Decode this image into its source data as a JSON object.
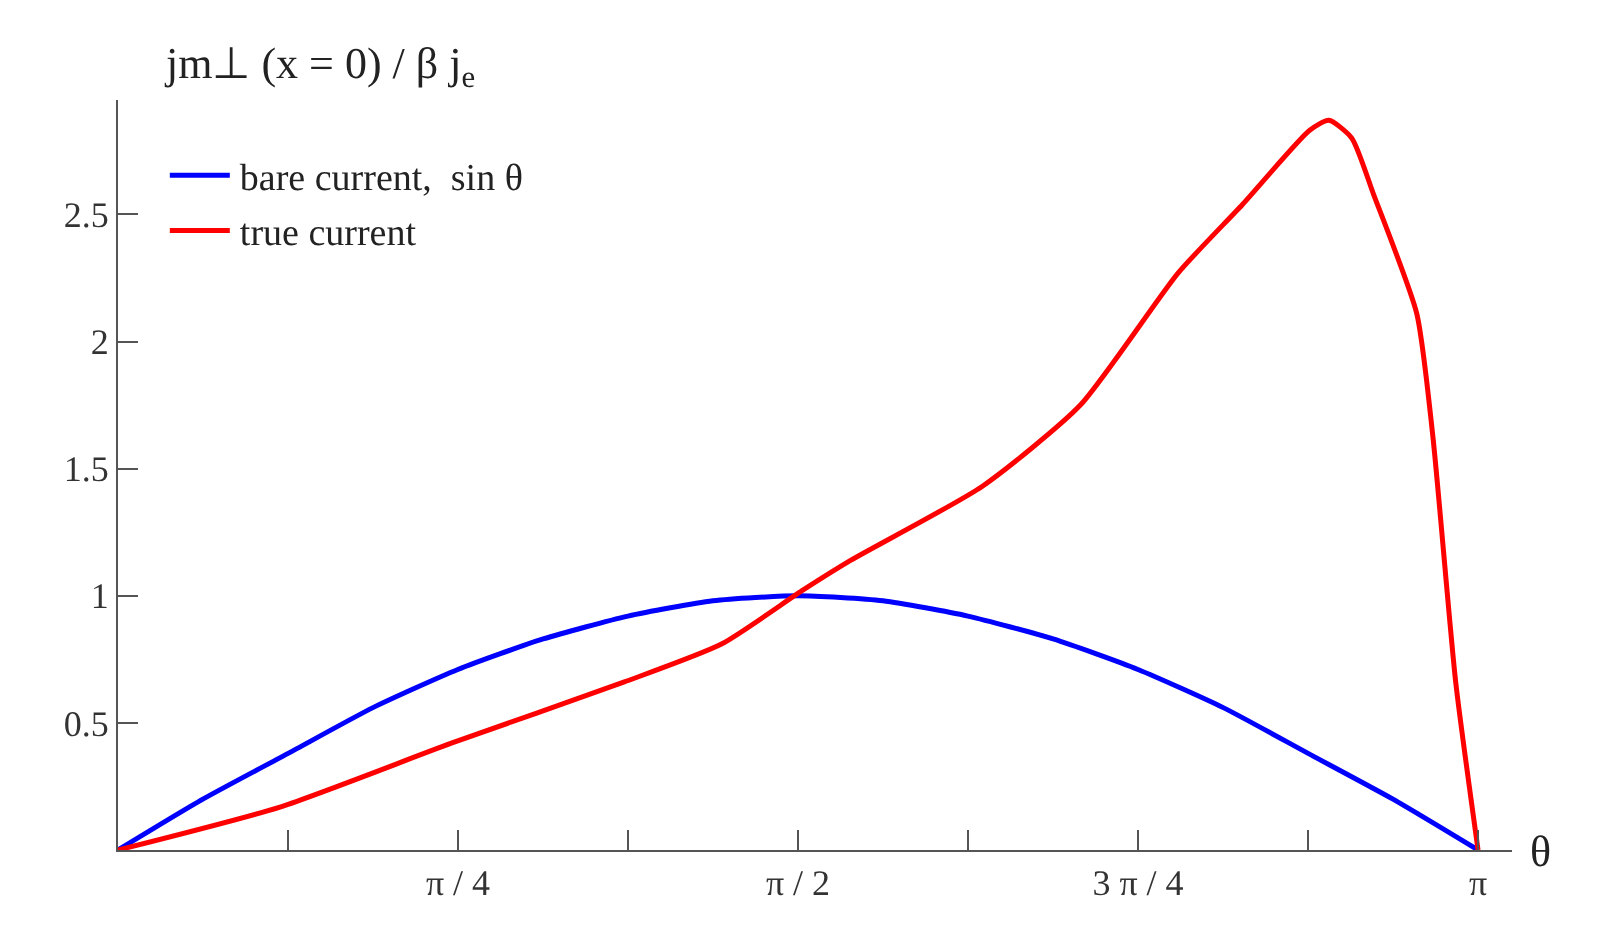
{
  "chart_data": {
    "type": "line",
    "ylabel": "jm⊥ (x = 0) / β j$_{e}$",
    "xlabel": "θ",
    "xlim": [
      0,
      3.22
    ],
    "ylim": [
      0,
      2.95
    ],
    "xticks": [
      {
        "value": 0.3927,
        "label": null
      },
      {
        "value": 0.7854,
        "label": "π / 4"
      },
      {
        "value": 1.1781,
        "label": null
      },
      {
        "value": 1.5708,
        "label": "π / 2"
      },
      {
        "value": 1.9635,
        "label": null
      },
      {
        "value": 2.3562,
        "label": "3 π / 4"
      },
      {
        "value": 2.7489,
        "label": null
      },
      {
        "value": 3.1416,
        "label": "π"
      }
    ],
    "yticks": [
      0.5,
      1,
      1.5,
      2,
      2.5
    ],
    "legend": "top left",
    "grid": false,
    "series": [
      {
        "name": "bare current,  sin θ",
        "color": "#0000ff",
        "x": [
          0,
          0.196,
          0.393,
          0.589,
          0.785,
          0.982,
          1.178,
          1.374,
          1.571,
          1.767,
          1.963,
          2.16,
          2.356,
          2.553,
          2.749,
          2.945,
          3.1416
        ],
        "values": [
          0,
          0.2,
          0.38,
          0.56,
          0.71,
          0.83,
          0.92,
          0.98,
          1,
          0.98,
          0.92,
          0.83,
          0.71,
          0.56,
          0.38,
          0.2,
          0
        ]
      },
      {
        "name": "true current",
        "color": "#ff0000",
        "x": [
          0,
          0.376,
          0.77,
          1.168,
          1.394,
          1.58,
          1.693,
          1.996,
          2.223,
          2.449,
          2.598,
          2.752,
          2.797,
          2.85,
          2.9,
          3.0,
          3.037,
          3.09,
          3.1416
        ],
        "values": [
          0,
          0.17,
          0.42,
          0.66,
          0.81,
          1.02,
          1.14,
          1.43,
          1.75,
          2.27,
          2.54,
          2.83,
          2.87,
          2.8,
          2.58,
          2.11,
          1.63,
          0.66,
          0
        ]
      }
    ]
  }
}
